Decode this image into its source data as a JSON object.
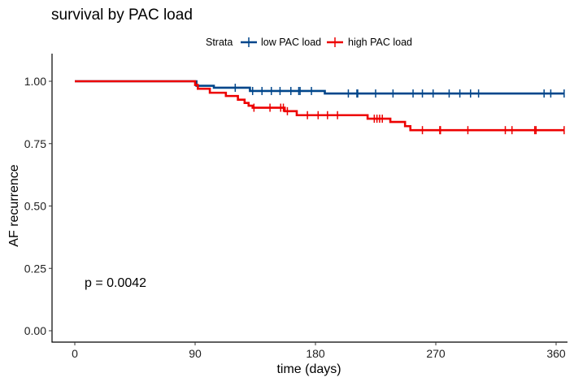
{
  "chart_data": {
    "type": "line",
    "subtype": "kaplan-meier step",
    "title": "survival by PAC load",
    "xlabel": "time (days)",
    "ylabel": "AF recurrence",
    "xlim": [
      0,
      366
    ],
    "ylim": [
      0,
      1
    ],
    "xticks": [
      0,
      90,
      180,
      270,
      360
    ],
    "yticks": [
      "0.00",
      "0.25",
      "0.50",
      "0.75",
      "1.00"
    ],
    "grid": false,
    "legend": {
      "title": "Strata",
      "placement": "top"
    },
    "annotation": "p = 0.0042",
    "series": [
      {
        "name": "low PAC load",
        "color": "#00468B",
        "steps": [
          [
            0,
            1.0
          ],
          [
            91,
            0.982
          ],
          [
            104,
            0.974
          ],
          [
            131,
            0.961
          ],
          [
            187,
            0.951
          ],
          [
            366,
            0.951
          ]
        ],
        "censored": [
          120,
          133,
          140,
          147,
          153.5,
          161.6,
          167.5,
          168.5,
          177,
          204.6,
          211,
          211.6,
          225,
          238,
          253,
          260,
          268,
          280,
          288,
          296,
          302,
          351,
          356,
          366
        ]
      },
      {
        "name": "high PAC load",
        "color": "#ED0000",
        "steps": [
          [
            0,
            1.0
          ],
          [
            90,
            0.985
          ],
          [
            92,
            0.97
          ],
          [
            101,
            0.954
          ],
          [
            113,
            0.941
          ],
          [
            122,
            0.926
          ],
          [
            127,
            0.913
          ],
          [
            130,
            0.902
          ],
          [
            133,
            0.894
          ],
          [
            157,
            0.88
          ],
          [
            166,
            0.864
          ],
          [
            219,
            0.85
          ],
          [
            236,
            0.837
          ],
          [
            247,
            0.82
          ],
          [
            251,
            0.804
          ],
          [
            366,
            0.804
          ]
        ],
        "censored": [
          134,
          146,
          154,
          156,
          159,
          174,
          182,
          189,
          196.5,
          224,
          226,
          228,
          230,
          260,
          273,
          273.5,
          294,
          322,
          327,
          344,
          345,
          366
        ]
      }
    ]
  }
}
